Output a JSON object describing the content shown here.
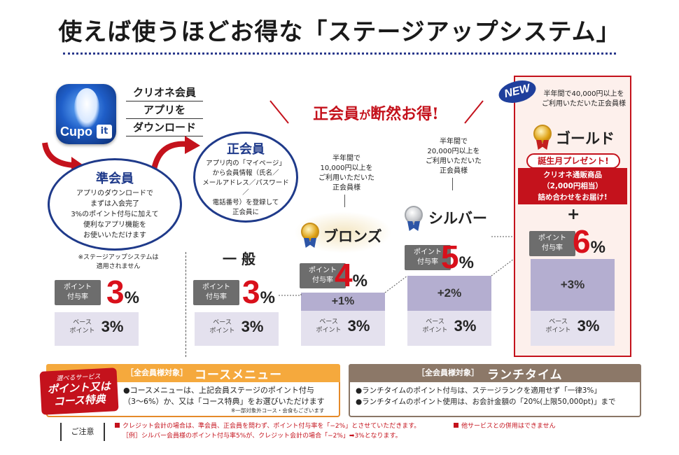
{
  "title": "使えば使うほどお得な「ステージアップシステム」",
  "app": {
    "icon_text": "Cupo",
    "icon_badge": "it",
    "download_lines": [
      "クリオネ会員",
      "アプリを",
      "ダウンロード"
    ]
  },
  "associate": {
    "title": "準会員",
    "body": "アプリのダウンロードで\nまずは入会完了\n3%のポイント付与に加えて\n便利なアプリ機能を\nお使いいただけます",
    "note": "※ステージアップシステムは\n適用されません",
    "rate_label": "ポイント\n付与率",
    "rate_value": "3",
    "pct": "%",
    "base_label": "ベース\nポイント",
    "base_value": "3%"
  },
  "regular": {
    "title": "正会員",
    "body": "アプリ内の「マイページ」\nから会員情報（氏名／\nメールアドレス／パスワード／\n電話番号）を登録して\n正会員に",
    "headline_main": "正会員",
    "headline_small": "が",
    "headline_end": "断然お得!"
  },
  "general": {
    "label": "一 般",
    "rate_label": "ポイント\n付与率",
    "rate_value": "3",
    "pct": "%",
    "base_label": "ベース\nポイント",
    "base_value": "3%"
  },
  "bronze": {
    "condition": "半年間で\n10,000円以上を\nご利用いただいた\n正会員様",
    "name": "ブロンズ",
    "rate_label": "ポイント\n付与率",
    "rate_value": "4",
    "pct": "%",
    "bonus": "+1%",
    "base_label": "ベース\nポイント",
    "base_value": "3%"
  },
  "silver": {
    "condition": "半年間で\n20,000円以上を\nご利用いただいた\n正会員様",
    "name": "シルバー",
    "rate_label": "ポイント\n付与率",
    "rate_value": "5",
    "pct": "%",
    "bonus": "+2%",
    "base_label": "ベース\nポイント",
    "base_value": "3%"
  },
  "gold": {
    "new_badge": "NEW",
    "condition": "半年間で40,000円以上を\nご利用いただいた正会員様",
    "name": "ゴールド",
    "present_title": "誕生月プレゼント!",
    "present_body": "クリオネ通販商品\n（2,000円相当）\n詰め合わせをお届け!",
    "plus": "+",
    "rate_label": "ポイント\n付与率",
    "rate_value": "6",
    "pct": "%",
    "bonus": "+3%",
    "base_label": "ベース\nポイント",
    "base_value": "3%"
  },
  "course": {
    "badge_small": "選べるサービス",
    "badge_line1": "ポイント又は",
    "badge_line2": "コース特典",
    "tag": "［全会員様対象］",
    "title": "コースメニュー",
    "body": "●コースメニューは、上記会員ステージのポイント付与\n（3〜6%）か、又は「コース特典」をお選びいただけます",
    "foot": "※一部対象外コース・会食もございます"
  },
  "lunch": {
    "tag": "［全会員様対象］",
    "title": "ランチタイム",
    "body": "●ランチタイムのポイント付与は、ステージランクを適用せず「一律3%」\n●ランチタイムのポイント使用は、お会計金額の「20%(上限50,000pt)」まで"
  },
  "notice": {
    "label": "ご注意",
    "line1": "クレジット会計の場合は、準会員、正会員を問わず、ポイント付与率を「−2%」とさせていただきます。",
    "line2": "［例］シルバー会員様のポイント付与率5%が、クレジット会計の場合「−2%」➡3%となります。",
    "line3": "他サービスとの併用はできません"
  },
  "colors": {
    "accent_red": "#c4121c",
    "navy": "#1f3a8a",
    "base_fill": "#e4e1ee",
    "bonus_fill": "#b4aed0",
    "orange": "#f5a93d",
    "brown": "#8c7868"
  }
}
